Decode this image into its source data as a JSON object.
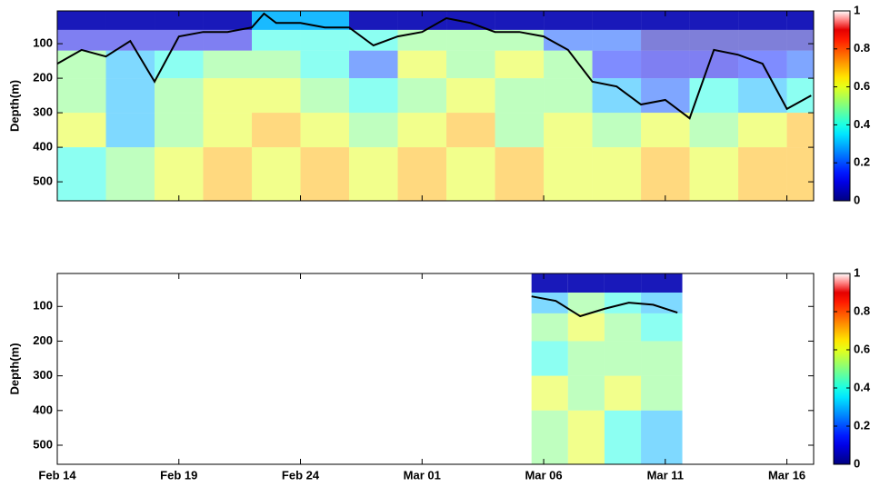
{
  "chart_data": [
    {
      "type": "heatmap",
      "colormap": "jet",
      "x_edges": [
        0,
        2,
        4,
        6,
        8,
        10,
        12,
        14,
        16,
        18,
        20,
        22,
        24,
        26,
        28,
        30,
        31.1
      ],
      "y_edges": [
        5,
        60,
        120,
        200,
        300,
        400,
        555
      ],
      "z": [
        [
          0.05,
          0.05,
          0.05,
          0.05,
          0.3,
          0.3,
          0.05,
          0.05,
          0.05,
          0.05,
          0.05,
          0.05,
          0.05,
          0.05,
          0.05,
          0.05
        ],
        [
          0.1,
          0.1,
          0.1,
          0.1,
          0.4,
          0.4,
          0.4,
          0.5,
          0.5,
          0.5,
          0.2,
          0.2,
          0.05,
          0.05,
          0.05,
          0.05
        ],
        [
          0.5,
          0.3,
          0.4,
          0.5,
          0.5,
          0.4,
          0.2,
          0.6,
          0.5,
          0.6,
          0.5,
          0.15,
          0.1,
          0.1,
          0.15,
          0.2
        ],
        [
          0.5,
          0.3,
          0.5,
          0.6,
          0.6,
          0.5,
          0.4,
          0.5,
          0.6,
          0.5,
          0.5,
          0.3,
          0.2,
          0.4,
          0.3,
          0.4
        ],
        [
          0.6,
          0.3,
          0.5,
          0.6,
          0.7,
          0.6,
          0.5,
          0.6,
          0.7,
          0.5,
          0.6,
          0.5,
          0.6,
          0.5,
          0.6,
          0.7
        ],
        [
          0.4,
          0.5,
          0.6,
          0.7,
          0.6,
          0.7,
          0.6,
          0.7,
          0.6,
          0.7,
          0.6,
          0.6,
          0.7,
          0.6,
          0.7,
          0.7
        ]
      ],
      "line": {
        "color": "#000000",
        "x": [
          0,
          1,
          2,
          3,
          4,
          5,
          6,
          7,
          8,
          8.5,
          9,
          10,
          11,
          12,
          13,
          14,
          15,
          16,
          17,
          18,
          19,
          20,
          21,
          22,
          23,
          24,
          25,
          26,
          27,
          28,
          29,
          30,
          31
        ],
        "values": [
          158,
          118,
          137,
          92,
          210,
          79,
          66,
          66,
          53,
          13,
          40,
          40,
          53,
          53,
          105,
          79,
          66,
          26,
          40,
          66,
          66,
          79,
          118,
          210,
          224,
          276,
          263,
          316,
          118,
          132,
          158,
          289,
          250
        ]
      },
      "xlim": [
        0,
        31.1
      ],
      "xticks": [
        0,
        5,
        10,
        15,
        20,
        25,
        30
      ],
      "ylim": [
        5,
        555
      ],
      "y_inverted": true,
      "yticks": [
        100,
        200,
        300,
        400,
        500
      ],
      "ylabel": "Depth(m)",
      "colorbar": {
        "lim": [
          0,
          1
        ],
        "ticks": [
          0,
          0.2,
          0.4,
          0.6,
          0.8,
          1
        ]
      }
    },
    {
      "type": "heatmap",
      "colormap": "jet",
      "x_edges": [
        19.5,
        21,
        22.5,
        24,
        25.7
      ],
      "y_edges": [
        5,
        60,
        120,
        200,
        300,
        400,
        555
      ],
      "z": [
        [
          0.05,
          0.05,
          0.05,
          0.05
        ],
        [
          0.3,
          0.5,
          0.4,
          0.3
        ],
        [
          0.5,
          0.6,
          0.5,
          0.4
        ],
        [
          0.4,
          0.5,
          0.5,
          0.5
        ],
        [
          0.6,
          0.5,
          0.6,
          0.5
        ],
        [
          0.5,
          0.6,
          0.4,
          0.3
        ]
      ],
      "line": {
        "color": "#000000",
        "x": [
          19.5,
          20.5,
          21.5,
          22.5,
          23.5,
          24.5,
          25.5
        ],
        "values": [
          71,
          84,
          128,
          107,
          89,
          95,
          118
        ]
      },
      "xlim": [
        0,
        31.1
      ],
      "xticks": [
        {
          "value": 0,
          "label": "Feb 14"
        },
        {
          "value": 5,
          "label": "Feb 19"
        },
        {
          "value": 10,
          "label": "Feb 24"
        },
        {
          "value": 15,
          "label": "Mar 01"
        },
        {
          "value": 20,
          "label": "Mar 06"
        },
        {
          "value": 25,
          "label": "Mar 11"
        },
        {
          "value": 30,
          "label": "Mar 16"
        }
      ],
      "ylim": [
        5,
        555
      ],
      "y_inverted": true,
      "yticks": [
        100,
        200,
        300,
        400,
        500
      ],
      "ylabel": "Depth(m)",
      "colorbar": {
        "lim": [
          0,
          1
        ],
        "ticks": [
          0,
          0.2,
          0.4,
          0.6,
          0.8,
          1
        ]
      }
    }
  ]
}
